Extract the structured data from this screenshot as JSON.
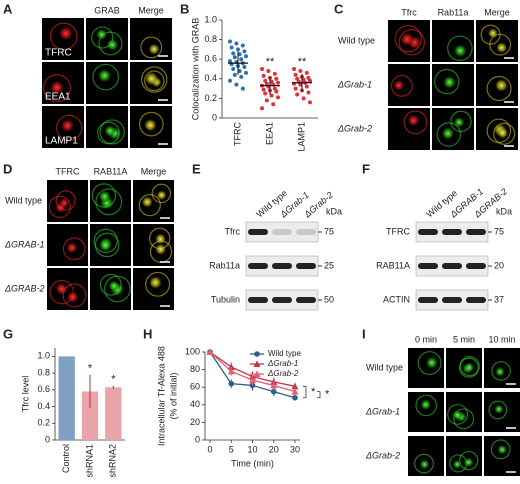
{
  "panels": {
    "A": {
      "label": "A",
      "columns": [
        "GRAB",
        "Merge"
      ],
      "rows": [
        "TFRC",
        "EEA1",
        "LAMP1"
      ]
    },
    "C": {
      "label": "C",
      "columns": [
        "Tfrc",
        "Rab11a",
        "Merge"
      ],
      "rows": [
        "Wild type",
        "ΔGrab-1",
        "ΔGrab-2"
      ]
    },
    "D": {
      "label": "D",
      "columns": [
        "TFRC",
        "RAB11A",
        "Merge"
      ],
      "rows": [
        "Wild type",
        "ΔGRAB-1",
        "ΔGRAB-2"
      ]
    },
    "E": {
      "label": "E",
      "lanes": [
        "Wild type",
        "ΔGrab-1",
        "ΔGrab-2"
      ],
      "unit": "kDa",
      "rows": [
        {
          "name": "Tfrc",
          "kda": 75
        },
        {
          "name": "Rab11a",
          "kda": 25
        },
        {
          "name": "Tubulin",
          "kda": 50
        }
      ]
    },
    "F": {
      "label": "F",
      "lanes": [
        "Wild type",
        "ΔGRAB-1",
        "ΔGRAB-2"
      ],
      "unit": "kDa",
      "rows": [
        {
          "name": "TFRC",
          "kda": 75
        },
        {
          "name": "RAB11A",
          "kda": 20
        },
        {
          "name": "ACTIN",
          "kda": 37
        }
      ]
    },
    "I": {
      "label": "I",
      "columns": [
        "0 min",
        "5 min",
        "10 min"
      ],
      "rows": [
        "Wild type",
        "ΔGrab-1",
        "ΔGrab-2"
      ]
    }
  },
  "chart_data": [
    {
      "type": "strip",
      "panel_label": "B",
      "ylabel": "Colocalization with GRAB",
      "categories": [
        "TFRC",
        "EEA1",
        "LAMP1"
      ],
      "colors": [
        "#2f6fb0",
        "#e0303c",
        "#e0303c"
      ],
      "values": [
        [
          0.78,
          0.76,
          0.74,
          0.72,
          0.7,
          0.68,
          0.66,
          0.65,
          0.63,
          0.62,
          0.6,
          0.58,
          0.57,
          0.56,
          0.55,
          0.53,
          0.52,
          0.5,
          0.48,
          0.46,
          0.44,
          0.42,
          0.38,
          0.34,
          0.3
        ],
        [
          0.5,
          0.48,
          0.45,
          0.43,
          0.41,
          0.4,
          0.38,
          0.37,
          0.36,
          0.35,
          0.34,
          0.33,
          0.32,
          0.3,
          0.29,
          0.28,
          0.27,
          0.25,
          0.23,
          0.21,
          0.18,
          0.14,
          0.1
        ],
        [
          0.5,
          0.48,
          0.46,
          0.44,
          0.42,
          0.41,
          0.4,
          0.39,
          0.38,
          0.37,
          0.36,
          0.35,
          0.34,
          0.32,
          0.3,
          0.28,
          0.26,
          0.24,
          0.2,
          0.16
        ]
      ],
      "means": [
        0.56,
        0.33,
        0.36
      ],
      "sd": [
        0.12,
        0.09,
        0.09
      ],
      "annotations": [
        null,
        "**",
        "**"
      ],
      "ylim": [
        0,
        1.0
      ],
      "yticks": [
        0,
        0.2,
        0.4,
        0.6,
        0.8,
        {
          "value": 1,
          "label": "1.0"
        }
      ]
    },
    {
      "type": "bar",
      "panel_label": "G",
      "ylabel": "Tfrc level",
      "categories": [
        "Control",
        "shRNA1",
        "shRNA2"
      ],
      "values": [
        1.0,
        0.58,
        0.63
      ],
      "errors": [
        0,
        0.2,
        0.02
      ],
      "colors": [
        "#7f9fc3",
        "#e8a3ab",
        "#e8a3ab"
      ],
      "annotations": [
        null,
        "*",
        "*"
      ],
      "ylim": [
        0,
        1.1
      ],
      "yticks": [
        0,
        0.2,
        0.4,
        0.6,
        0.8,
        {
          "value": 1,
          "label": "1.0"
        }
      ]
    },
    {
      "type": "line",
      "panel_label": "H",
      "ylabel": "Intracellular Tf-Alexa 488",
      "ylabel_sub": "(% of initial)",
      "xlabel": "Time (min)",
      "categories": [
        "0",
        "5",
        "10",
        "20",
        "30"
      ],
      "series": [
        {
          "name": "Wild type",
          "color": "#2c5f8a",
          "marker": "circle",
          "values": [
            100,
            64,
            62,
            55,
            48
          ],
          "errors": [
            0,
            5,
            6,
            5,
            2
          ]
        },
        {
          "name": "ΔGrab-1",
          "color": "#c0344a",
          "marker": "triangle",
          "values": [
            100,
            83,
            72,
            66,
            61
          ],
          "errors": [
            0,
            5,
            6,
            5,
            4
          ]
        },
        {
          "name": "ΔGrab-2",
          "color": "#e0607a",
          "marker": "triangle",
          "values": [
            100,
            78,
            68,
            62,
            55
          ],
          "errors": [
            0,
            5,
            6,
            6,
            5
          ]
        }
      ],
      "annotations": [
        "*",
        "*"
      ],
      "legend": "upper right",
      "ylim": [
        0,
        100
      ],
      "yticks": [
        0,
        20,
        40,
        60,
        80,
        100
      ]
    }
  ]
}
